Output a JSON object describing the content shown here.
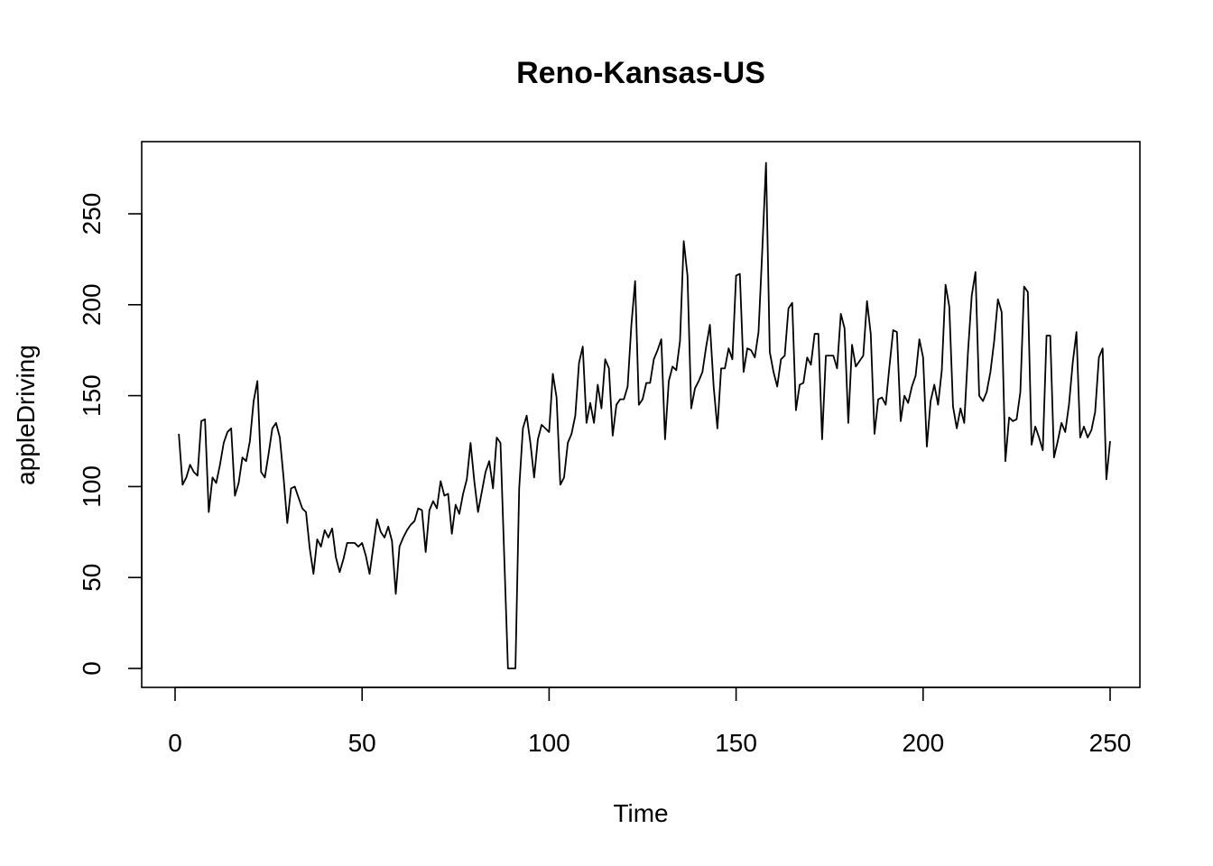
{
  "chart_data": {
    "type": "line",
    "title": "Reno-Kansas-US",
    "xlabel": "Time",
    "ylabel": "appleDriving",
    "xlim": [
      0,
      250
    ],
    "ylim": [
      0,
      280
    ],
    "xticks": [
      0,
      50,
      100,
      150,
      200,
      250
    ],
    "xtick_labels": [
      "0",
      "50",
      "100",
      "150",
      "200",
      "250"
    ],
    "yticks": [
      0,
      50,
      100,
      150,
      200,
      250
    ],
    "ytick_labels": [
      "0",
      "50",
      "100",
      "150",
      "200",
      "250"
    ],
    "grid": false,
    "legend": "none",
    "series": [
      {
        "color": "#000000",
        "values": [
          129,
          101,
          105,
          112,
          108,
          106,
          136,
          137,
          86,
          105,
          102,
          112,
          124,
          130,
          132,
          95,
          102,
          116,
          114,
          125,
          147,
          158,
          108,
          105,
          118,
          132,
          135,
          127,
          105,
          80,
          99,
          100,
          94,
          88,
          86,
          66,
          52,
          71,
          67,
          76,
          72,
          77,
          61,
          53,
          60,
          69,
          69,
          69,
          67,
          69,
          62,
          52,
          67,
          82,
          75,
          72,
          78,
          70,
          41,
          67,
          72,
          76,
          79,
          81,
          88,
          87,
          64,
          87,
          92,
          88,
          103,
          95,
          96,
          74,
          90,
          85,
          96,
          104,
          124,
          103,
          86,
          97,
          108,
          114,
          99,
          127,
          124,
          62,
          0,
          0,
          0,
          99,
          132,
          139,
          124,
          105,
          126,
          134,
          132,
          130,
          162,
          149,
          101,
          105,
          124,
          129,
          139,
          168,
          177,
          135,
          146,
          135,
          156,
          143,
          170,
          165,
          128,
          145,
          148,
          148,
          155,
          189,
          213,
          145,
          148,
          157,
          157,
          170,
          175,
          181,
          126,
          158,
          166,
          164,
          180,
          235,
          216,
          143,
          154,
          158,
          163,
          177,
          189,
          155,
          132,
          165,
          165,
          176,
          170,
          216,
          217,
          163,
          176,
          175,
          171,
          185,
          230,
          278,
          174,
          163,
          155,
          170,
          172,
          198,
          201,
          142,
          156,
          157,
          171,
          167,
          184,
          184,
          126,
          172,
          172,
          172,
          165,
          195,
          187,
          135,
          178,
          166,
          169,
          172,
          202,
          184,
          129,
          148,
          149,
          145,
          166,
          186,
          185,
          136,
          150,
          146,
          155,
          161,
          181,
          171,
          122,
          147,
          156,
          145,
          164,
          211,
          199,
          144,
          132,
          143,
          135,
          174,
          205,
          218,
          150,
          147,
          152,
          163,
          180,
          203,
          196,
          114,
          138,
          136,
          137,
          152,
          210,
          207,
          123,
          133,
          127,
          120,
          183,
          183,
          116,
          125,
          135,
          130,
          145,
          168,
          185,
          127,
          133,
          127,
          131,
          141,
          171,
          176,
          104,
          125
        ]
      }
    ]
  }
}
